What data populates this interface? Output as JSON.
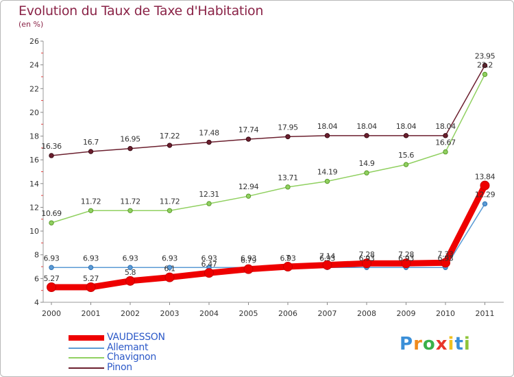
{
  "chart_data": {
    "type": "line",
    "title": "Evolution du Taux de Taxe d'Habitation",
    "subtitle": "(en %)",
    "xlabel": "",
    "ylabel": "",
    "ylim": [
      4,
      26
    ],
    "yticks": [
      "4",
      "6",
      "8",
      "10",
      "12",
      "14",
      "16",
      "18",
      "20",
      "22",
      "24",
      "26"
    ],
    "categories": [
      "2000",
      "2001",
      "2002",
      "2003",
      "2004",
      "2005",
      "2006",
      "2007",
      "2008",
      "2009",
      "2010",
      "2011"
    ],
    "grid": false,
    "legend_position": "bottom-left",
    "series": [
      {
        "name": "Pinon",
        "color": "#6b1f2e",
        "values": [
          16.36,
          16.7,
          16.95,
          17.22,
          17.48,
          17.74,
          17.95,
          18.04,
          18.04,
          18.04,
          18.04,
          23.95
        ],
        "labels": [
          "16.36",
          "16.7",
          "16.95",
          "17.22",
          "17.48",
          "17.74",
          "17.95",
          "18.04",
          "18.04",
          "18.04",
          "18.04",
          "23.95"
        ]
      },
      {
        "name": "Chavignon",
        "color": "#90d060",
        "values": [
          10.69,
          11.72,
          11.72,
          11.72,
          12.31,
          12.94,
          13.71,
          14.19,
          14.9,
          15.6,
          16.67,
          23.2
        ],
        "labels": [
          "10.69",
          "11.72",
          "11.72",
          "11.72",
          "12.31",
          "12.94",
          "13.71",
          "14.19",
          "14.9",
          "15.6",
          "16.67",
          "23.2"
        ]
      },
      {
        "name": "Allemant",
        "color": "#5b9bd5",
        "values": [
          6.93,
          6.93,
          6.93,
          6.93,
          6.93,
          6.93,
          6.93,
          6.93,
          6.93,
          6.93,
          6.93,
          12.29
        ],
        "labels": [
          "6.93",
          "6.93",
          "6.93",
          "6.93",
          "6.93",
          "6.93",
          "6.93",
          "6.93",
          "6.93",
          "6.93",
          "6.93",
          "12.29"
        ]
      },
      {
        "name": "VAUDESSON",
        "color": "#ee0000",
        "values": [
          5.27,
          5.27,
          5.8,
          6.1,
          6.47,
          6.79,
          7.0,
          7.14,
          7.28,
          7.28,
          7.33,
          13.84
        ],
        "labels": [
          "5.27",
          "5.27",
          "5.8",
          "6.1",
          "6.47",
          "6.79",
          "7",
          "7.14",
          "7.28",
          "7.28",
          "7.33",
          "13.84"
        ]
      }
    ]
  },
  "legend": {
    "items": [
      {
        "name": "VAUDESSON",
        "color": "#ee0000"
      },
      {
        "name": "Allemant",
        "color": "#5b9bd5"
      },
      {
        "name": "Chavignon",
        "color": "#90d060"
      },
      {
        "name": "Pinon",
        "color": "#6b1f2e"
      }
    ]
  },
  "logo": {
    "letters": [
      "P",
      "r",
      "o",
      "x",
      "i",
      "t",
      "i"
    ],
    "colors": [
      "#3a8fd8",
      "#f08a1c",
      "#3ab04a",
      "#e8352a",
      "#f0c020",
      "#3a8fd8",
      "#8fc43a"
    ]
  }
}
